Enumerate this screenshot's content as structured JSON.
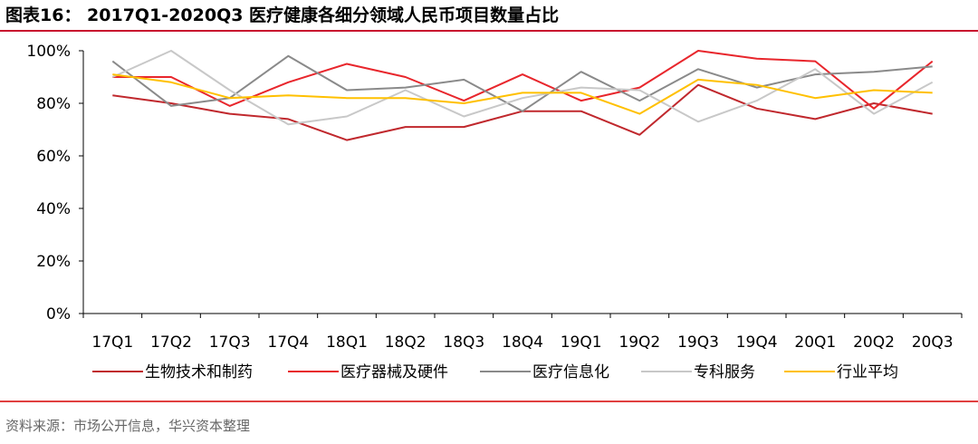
{
  "header": {
    "title": "图表16： 2017Q1-2020Q3 医疗健康各细分领域人民币项目数量占比"
  },
  "footer": {
    "source": "资料来源：市场公开信息，华兴资本整理"
  },
  "chart_data": {
    "type": "line",
    "title": "图表16： 2017Q1-2020Q3 医疗健康各细分领域人民币项目数量占比",
    "xlabel": "",
    "ylabel": "",
    "categories": [
      "17Q1",
      "17Q2",
      "17Q3",
      "17Q4",
      "18Q1",
      "18Q2",
      "18Q3",
      "18Q4",
      "19Q1",
      "19Q2",
      "19Q3",
      "19Q4",
      "20Q1",
      "20Q2",
      "20Q3"
    ],
    "y_ticks": [
      "0%",
      "20%",
      "40%",
      "60%",
      "80%",
      "100%"
    ],
    "ylim": [
      0,
      100
    ],
    "grid": false,
    "legend_position": "bottom",
    "series": [
      {
        "name": "生物技术和制药",
        "color": "#c0282d",
        "values": [
          83,
          80,
          76,
          74,
          66,
          71,
          71,
          77,
          77,
          68,
          87,
          78,
          74,
          80,
          76
        ]
      },
      {
        "name": "医疗器械及硬件",
        "color": "#e8262c",
        "values": [
          90,
          90,
          79,
          88,
          95,
          90,
          81,
          91,
          81,
          86,
          100,
          97,
          96,
          78,
          96
        ]
      },
      {
        "name": "医疗信息化",
        "color": "#8a8a8a",
        "values": [
          96,
          79,
          82,
          98,
          85,
          86,
          89,
          77,
          92,
          81,
          93,
          86,
          91,
          92,
          94
        ]
      },
      {
        "name": "专科服务",
        "color": "#c8c8c8",
        "values": [
          90,
          100,
          85,
          72,
          75,
          85,
          75,
          82,
          86,
          85,
          73,
          81,
          93,
          76,
          88
        ]
      },
      {
        "name": "行业平均",
        "color": "#ffc000",
        "values": [
          91,
          88,
          82,
          83,
          82,
          82,
          80,
          84,
          84,
          76,
          89,
          87,
          82,
          85,
          84
        ]
      }
    ]
  }
}
